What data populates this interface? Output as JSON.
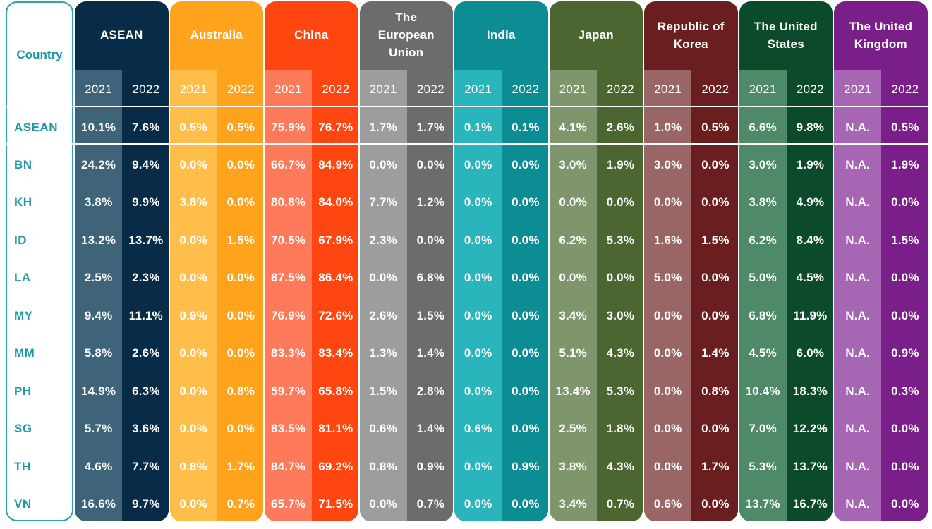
{
  "table": {
    "header_label": "Country",
    "years": [
      "2021",
      "2022"
    ]
  },
  "chart_data": {
    "type": "table",
    "columns": [
      {
        "name": "ASEAN",
        "colors": [
          "#3f6479",
          "#082b47"
        ]
      },
      {
        "name": "Australia",
        "colors": [
          "#ffbd4a",
          "#ffa21c"
        ]
      },
      {
        "name": "China",
        "colors": [
          "#ff7a5a",
          "#ff4611"
        ]
      },
      {
        "name": "The\nEuropean\nUnion",
        "colors": [
          "#9d9d9d",
          "#6c6c6c"
        ]
      },
      {
        "name": "India",
        "colors": [
          "#2ab4bb",
          "#0b8d93"
        ]
      },
      {
        "name": "Japan",
        "colors": [
          "#7f956b",
          "#4b6630"
        ]
      },
      {
        "name": "Republic of\nKorea",
        "colors": [
          "#9a6565",
          "#6a1e1f"
        ]
      },
      {
        "name": "The United\nStates",
        "colors": [
          "#4e8a68",
          "#0b4a2b"
        ]
      },
      {
        "name": "The United\nKingdom",
        "colors": [
          "#a766b3",
          "#7a1f8a"
        ]
      }
    ],
    "rows": [
      {
        "country": "ASEAN",
        "values": [
          "10.1%",
          "7.6%",
          "0.5%",
          "0.5%",
          "75.9%",
          "76.7%",
          "1.7%",
          "1.7%",
          "0.1%",
          "0.1%",
          "4.1%",
          "2.6%",
          "1.0%",
          "0.5%",
          "6.6%",
          "9.8%",
          "N.A.",
          "0.5%"
        ]
      },
      {
        "country": "BN",
        "values": [
          "24.2%",
          "9.4%",
          "0.0%",
          "0.0%",
          "66.7%",
          "84.9%",
          "0.0%",
          "0.0%",
          "0.0%",
          "0.0%",
          "3.0%",
          "1.9%",
          "3.0%",
          "0.0%",
          "3.0%",
          "1.9%",
          "N.A.",
          "1.9%"
        ]
      },
      {
        "country": "KH",
        "values": [
          "3.8%",
          "9.9%",
          "3.8%",
          "0.0%",
          "80.8%",
          "84.0%",
          "7.7%",
          "1.2%",
          "0.0%",
          "0.0%",
          "0.0%",
          "0.0%",
          "0.0%",
          "0.0%",
          "3.8%",
          "4.9%",
          "N.A.",
          "0.0%"
        ]
      },
      {
        "country": "ID",
        "values": [
          "13.2%",
          "13.7%",
          "0.0%",
          "1.5%",
          "70.5%",
          "67.9%",
          "2.3%",
          "0.0%",
          "0.0%",
          "0.0%",
          "6.2%",
          "5.3%",
          "1.6%",
          "1.5%",
          "6.2%",
          "8.4%",
          "N.A.",
          "1.5%"
        ]
      },
      {
        "country": "LA",
        "values": [
          "2.5%",
          "2.3%",
          "0.0%",
          "0.0%",
          "87.5%",
          "86.4%",
          "0.0%",
          "6.8%",
          "0.0%",
          "0.0%",
          "0.0%",
          "0.0%",
          "5.0%",
          "0.0%",
          "5.0%",
          "4.5%",
          "N.A.",
          "0.0%"
        ]
      },
      {
        "country": "MY",
        "values": [
          "9.4%",
          "11.1%",
          "0.9%",
          "0.0%",
          "76.9%",
          "72.6%",
          "2.6%",
          "1.5%",
          "0.0%",
          "0.0%",
          "3.4%",
          "3.0%",
          "0.0%",
          "0.0%",
          "6.8%",
          "11.9%",
          "N.A.",
          "0.0%"
        ]
      },
      {
        "country": "MM",
        "values": [
          "5.8%",
          "2.6%",
          "0.0%",
          "0.0%",
          "83.3%",
          "83.4%",
          "1.3%",
          "1.4%",
          "0.0%",
          "0.0%",
          "5.1%",
          "4.3%",
          "0.0%",
          "1.4%",
          "4.5%",
          "6.0%",
          "N.A.",
          "0.9%"
        ]
      },
      {
        "country": "PH",
        "values": [
          "14.9%",
          "6.3%",
          "0.0%",
          "0.8%",
          "59.7%",
          "65.8%",
          "1.5%",
          "2.8%",
          "0.0%",
          "0.0%",
          "13.4%",
          "5.3%",
          "0.0%",
          "0.8%",
          "10.4%",
          "18.3%",
          "N.A.",
          "0.3%"
        ]
      },
      {
        "country": "SG",
        "values": [
          "5.7%",
          "3.6%",
          "0.0%",
          "0.0%",
          "83.5%",
          "81.1%",
          "0.6%",
          "1.4%",
          "0.6%",
          "0.0%",
          "2.5%",
          "1.8%",
          "0.0%",
          "0.0%",
          "7.0%",
          "12.2%",
          "N.A.",
          "0.0%"
        ]
      },
      {
        "country": "TH",
        "values": [
          "4.6%",
          "7.7%",
          "0.8%",
          "1.7%",
          "84.7%",
          "69.2%",
          "0.8%",
          "0.9%",
          "0.0%",
          "0.9%",
          "3.8%",
          "4.3%",
          "0.0%",
          "1.7%",
          "5.3%",
          "13.7%",
          "N.A.",
          "0.0%"
        ]
      },
      {
        "country": "VN",
        "values": [
          "16.6%",
          "9.7%",
          "0.0%",
          "0.7%",
          "65.7%",
          "71.5%",
          "0.0%",
          "0.7%",
          "0.0%",
          "0.0%",
          "3.4%",
          "0.7%",
          "0.6%",
          "0.0%",
          "13.7%",
          "16.7%",
          "N.A.",
          "0.0%"
        ]
      }
    ]
  }
}
